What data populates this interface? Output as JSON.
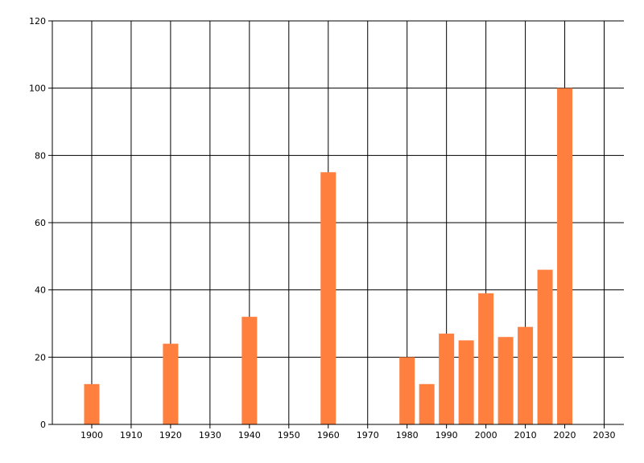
{
  "chart_data": {
    "type": "bar",
    "title": "",
    "xlabel": "",
    "ylabel": "",
    "x": [
      1900,
      1920,
      1940,
      1960,
      1980,
      1985,
      1990,
      1995,
      2000,
      2005,
      2010,
      2015,
      2020
    ],
    "values": [
      12,
      24,
      32,
      75,
      20,
      12,
      27,
      25,
      39,
      26,
      29,
      46,
      100
    ],
    "xlim": [
      1890,
      2035
    ],
    "ylim": [
      0,
      120
    ],
    "x_ticks": [
      1900,
      1910,
      1920,
      1930,
      1940,
      1950,
      1960,
      1970,
      1980,
      1990,
      2000,
      2010,
      2020,
      2030
    ],
    "y_ticks": [
      0,
      20,
      40,
      60,
      80,
      100,
      120
    ],
    "bar_color": "#FF7F3F",
    "grid": true,
    "legend": "none"
  }
}
